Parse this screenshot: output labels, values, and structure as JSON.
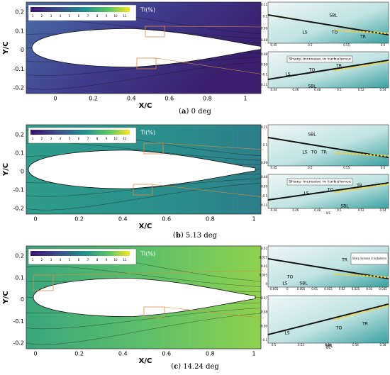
{
  "figure": {
    "panels": [
      {
        "caption_label": "a",
        "caption_text": "0 deg",
        "legend_title": "TI(%)",
        "legend_ticks": [
          "1",
          "2",
          "3",
          "4",
          "5",
          "6",
          "7",
          "8",
          "9",
          "10",
          "11"
        ],
        "y_label": "Y/C",
        "x_label": "X/C",
        "y_ticks": [
          "0.2",
          "0.1",
          "0",
          "-0.1",
          "-0.2"
        ],
        "x_ticks": [
          "0",
          "0.2",
          "0.4",
          "0.6",
          "0.8",
          "1"
        ],
        "inset_top": {
          "labels": [
            "SBL",
            "LS",
            "TO",
            "TR"
          ],
          "y_ticks": [
            "0.11",
            "0.1",
            "0.09",
            "0.08"
          ],
          "x_ticks": [
            "0.45",
            "0.5",
            "0.55",
            "0.6"
          ]
        },
        "inset_bottom": {
          "note": "Sharp increase in turbulence",
          "labels": [
            "LS",
            "TO",
            "TR",
            "SBL"
          ],
          "y_ticks": [
            "-0.08",
            "-0.09",
            "-0.1",
            "-0.11"
          ],
          "x_ticks": [
            "0.44",
            "0.46",
            "0.48",
            "0.5",
            "0.52",
            "0.54"
          ]
        }
      },
      {
        "caption_label": "b",
        "caption_text": "5.13 deg",
        "legend_title": "TI(%)",
        "legend_ticks": [
          "1",
          "2",
          "3",
          "4",
          "5",
          "6",
          "7",
          "8",
          "9",
          "10",
          "11"
        ],
        "y_label": "Y/C",
        "x_label": "X/C",
        "y_ticks": [
          "0.2",
          "0.1",
          "0",
          "-0.1",
          "-0.2"
        ],
        "x_ticks": [
          "0",
          "0.2",
          "0.4",
          "0.6",
          "0.8",
          "1"
        ],
        "inset_top": {
          "labels": [
            "SBL",
            "LS",
            "TO",
            "TR"
          ],
          "y_ticks": [
            "0.11",
            "0.1",
            "0.09"
          ],
          "x_ticks": [
            "0.45",
            "0.5",
            "0.55",
            "0.6"
          ]
        },
        "inset_bottom": {
          "note": "Sharp increase in turbulence",
          "labels": [
            "TR",
            "TO",
            "LS",
            "SBL"
          ],
          "y_ticks": [
            "-0.08",
            "-0.09",
            "-0.1",
            "-0.11"
          ],
          "x_ticks": [
            "0.44",
            "0.46",
            "0.48",
            "0.5",
            "0.52",
            "0.54"
          ],
          "x_label": "X/C"
        }
      },
      {
        "caption_label": "c",
        "caption_text": "14.24 deg",
        "legend_title": "TI(%)",
        "legend_ticks": [
          "1",
          "2",
          "3",
          "4",
          "5",
          "6",
          "7",
          "8",
          "9",
          "10",
          "11"
        ],
        "y_label": "Y/C",
        "x_label": "X/C",
        "y_ticks": [
          "0.2",
          "0.1",
          "0",
          "-0.1",
          "-0.2"
        ],
        "x_ticks": [
          "0",
          "0.2",
          "0.4",
          "0.6",
          "0.8",
          "1"
        ],
        "inset_top": {
          "note": "Sharp increase in turbulence",
          "labels": [
            "TR",
            "TO",
            "LS",
            "SBL"
          ],
          "y_ticks": [
            "0.02",
            "0.015",
            "0.01",
            "0.005",
            "0"
          ],
          "x_ticks": [
            "-0.005",
            "0",
            "0.005",
            "0.01",
            "0.015",
            "0.02",
            "0.025",
            "0.03",
            "0.035"
          ]
        },
        "inset_bottom": {
          "labels": [
            "TR",
            "TO",
            "LS",
            "SBL"
          ],
          "y_ticks": [
            "-0.07",
            "-0.08",
            "-0.09",
            "-0.1"
          ],
          "x_ticks": [
            "0.5",
            "0.52",
            "0.54",
            "0.56",
            "0.58"
          ],
          "x_label": "X/C"
        }
      }
    ]
  }
}
